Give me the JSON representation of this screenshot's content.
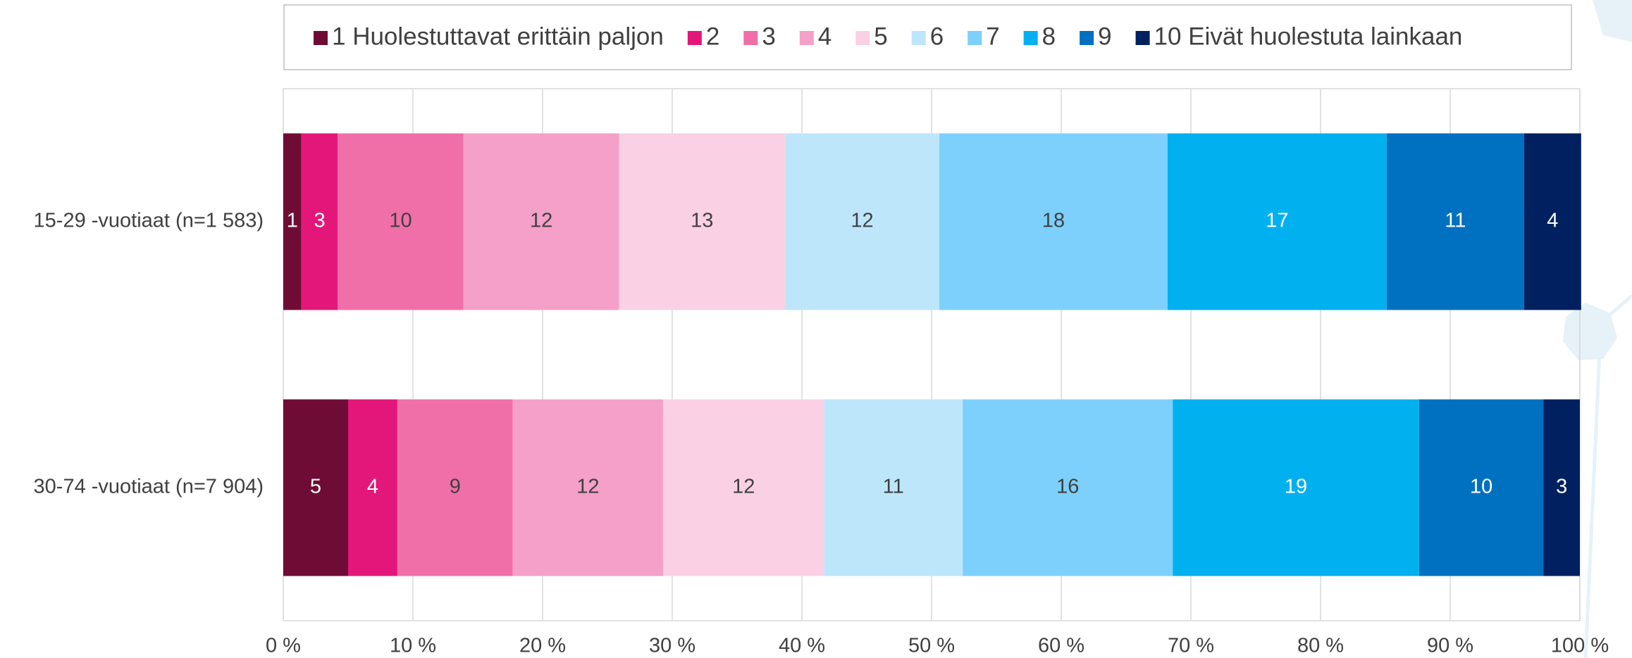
{
  "chart_data": {
    "type": "stacked_bar_horizontal_percent",
    "categories": [
      "15-29 -vuotiaat (n=1 583)",
      "30-74 -vuotiaat (n=7 904)"
    ],
    "series": [
      {
        "name": "1 Huolestuttavat erittäin paljon",
        "color": "#6f0c35",
        "values": [
          1.4,
          5.0
        ],
        "value_labels": [
          "1",
          "5"
        ]
      },
      {
        "name": "2",
        "color": "#e3177a",
        "values": [
          2.8,
          3.8
        ],
        "value_labels": [
          "3",
          "4"
        ]
      },
      {
        "name": "3",
        "color": "#f06fa8",
        "values": [
          9.7,
          8.9
        ],
        "value_labels": [
          "10",
          "9"
        ]
      },
      {
        "name": "4",
        "color": "#f4a0c8",
        "values": [
          12.0,
          11.6
        ],
        "value_labels": [
          "12",
          "12"
        ]
      },
      {
        "name": "5",
        "color": "#fad0e4",
        "values": [
          12.8,
          12.4
        ],
        "value_labels": [
          "13",
          "12"
        ]
      },
      {
        "name": "6",
        "color": "#bee6fb",
        "values": [
          11.9,
          10.7
        ],
        "value_labels": [
          "12",
          "11"
        ]
      },
      {
        "name": "7",
        "color": "#7dd0fb",
        "values": [
          17.6,
          16.2
        ],
        "value_labels": [
          "18",
          "16"
        ]
      },
      {
        "name": "8",
        "color": "#00b0ef",
        "values": [
          16.9,
          19.0
        ],
        "value_labels": [
          "17",
          "19"
        ]
      },
      {
        "name": "9",
        "color": "#0070c0",
        "values": [
          10.6,
          9.6
        ],
        "value_labels": [
          "11",
          "10"
        ]
      },
      {
        "name": "10 Eivät huolestuta lainkaan",
        "color": "#002060",
        "values": [
          4.4,
          2.8
        ],
        "value_labels": [
          "4",
          "3"
        ]
      }
    ],
    "xlim": [
      0,
      100
    ],
    "xticks": [
      {
        "value": 0,
        "label": "0 %"
      },
      {
        "value": 10,
        "label": "10 %"
      },
      {
        "value": 20,
        "label": "20 %"
      },
      {
        "value": 30,
        "label": "30 %"
      },
      {
        "value": 40,
        "label": "40 %"
      },
      {
        "value": 50,
        "label": "50 %"
      },
      {
        "value": 60,
        "label": "60 %"
      },
      {
        "value": 70,
        "label": "70 %"
      },
      {
        "value": 80,
        "label": "80 %"
      },
      {
        "value": 90,
        "label": "90 %"
      },
      {
        "value": 100,
        "label": "100 %"
      }
    ],
    "grid": true,
    "legend": "top"
  }
}
